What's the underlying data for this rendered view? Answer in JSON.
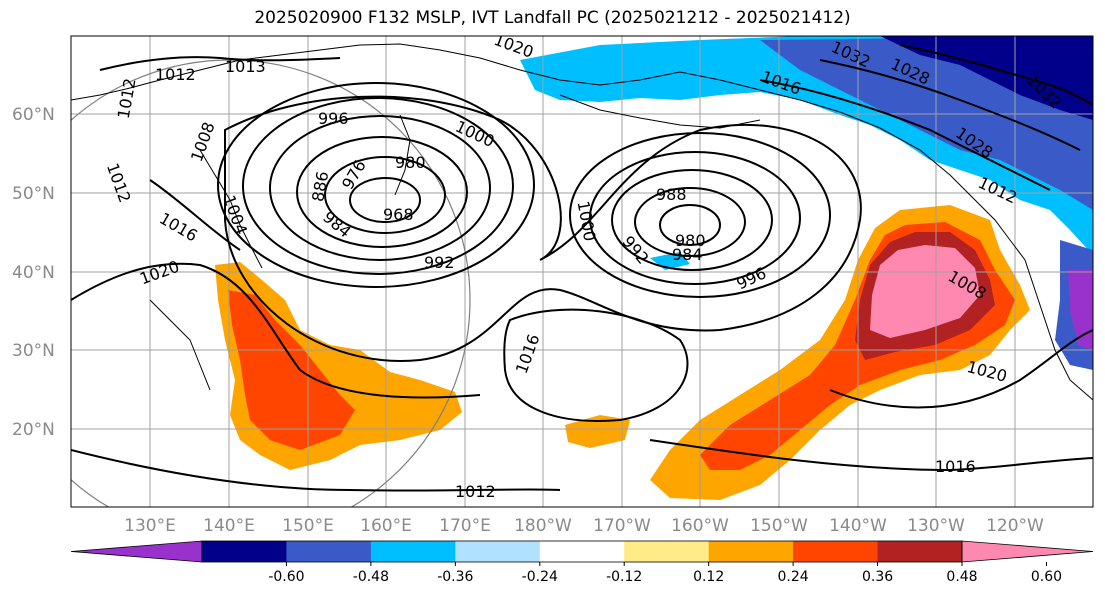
{
  "title": "2025020900 F132 MSLP, IVT Landfall PC (2025021212 - 2025021412)",
  "lat_labels": [
    "60°N",
    "50°N",
    "40°N",
    "30°N",
    "20°N"
  ],
  "lon_labels": [
    "130°E",
    "140°E",
    "150°E",
    "160°E",
    "170°E",
    "180°W",
    "170°W",
    "160°W",
    "150°W",
    "140°W",
    "130°W",
    "120°W"
  ],
  "contour_labels": [
    "1012",
    "1013",
    "1012",
    "1008",
    "1012",
    "1004",
    "1016",
    "1020",
    "996",
    "1000",
    "976",
    "980",
    "886",
    "984",
    "968",
    "992",
    "1000",
    "988",
    "992",
    "980",
    "984",
    "996",
    "1016",
    "1008",
    "1020",
    "1016",
    "1012",
    "1020",
    "1032",
    "1016",
    "1028",
    "1032",
    "1028",
    "1012"
  ],
  "colorbar": {
    "ticks": [
      "-0.60",
      "-0.48",
      "-0.36",
      "-0.24",
      "-0.12",
      "0.12",
      "0.24",
      "0.36",
      "0.48",
      "0.60"
    ],
    "colors": [
      "#9932cc",
      "#00008b",
      "#3a5bc7",
      "#00bfff",
      "#b0e2ff",
      "#ffffff",
      "#ffeb87",
      "#ffa500",
      "#ff4500",
      "#b22222",
      "#ff88b0"
    ]
  }
}
